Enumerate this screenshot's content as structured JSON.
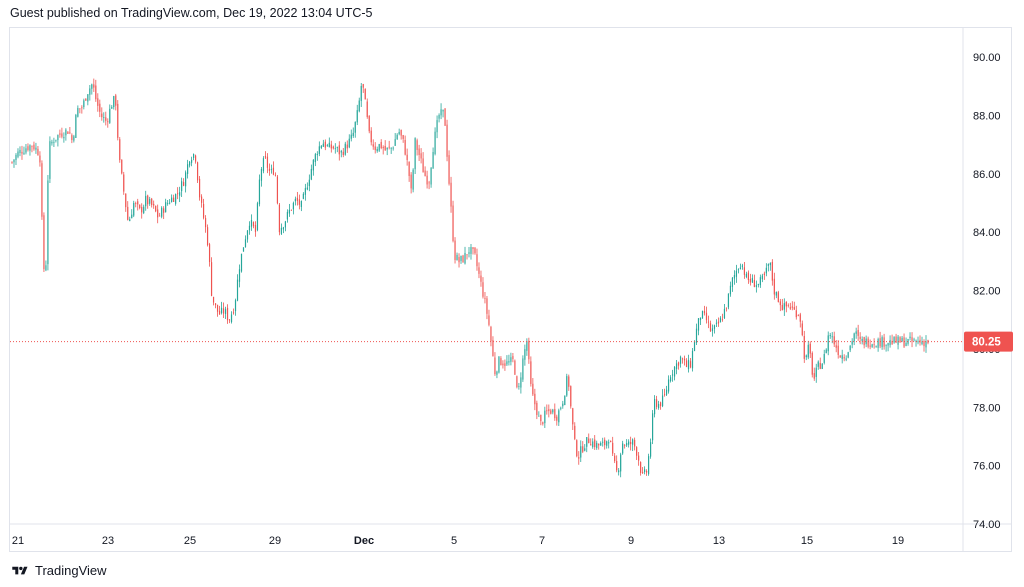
{
  "header": {
    "text": "Guest published on TradingView.com, Dec 19, 2022 13:04 UTC-5"
  },
  "footer": {
    "brand": "TradingView"
  },
  "colors": {
    "up": "#26a69a",
    "down": "#ef5350",
    "price_line": "#ef5350",
    "axis_border": "#e0e3eb"
  },
  "chart_data": {
    "type": "candlestick",
    "title": "",
    "ylim": [
      74,
      91
    ],
    "y_ticks": [
      "90.00",
      "88.00",
      "86.00",
      "84.00",
      "82.00",
      "80.00",
      "78.00",
      "76.00",
      "74.00"
    ],
    "x_tick_labels": [
      "21",
      "23",
      "25",
      "29",
      "Dec",
      "5",
      "7",
      "9",
      "13",
      "15",
      "19"
    ],
    "last_price": "80.25",
    "grid": false,
    "close_path": [
      [
        0.0,
        86.4
      ],
      [
        0.006,
        86.7
      ],
      [
        0.015,
        86.9
      ],
      [
        0.022,
        87.0
      ],
      [
        0.028,
        86.8
      ],
      [
        0.031,
        86.5
      ],
      [
        0.034,
        82.7
      ],
      [
        0.037,
        82.9
      ],
      [
        0.04,
        86.9
      ],
      [
        0.046,
        87.2
      ],
      [
        0.054,
        87.4
      ],
      [
        0.062,
        87.5
      ],
      [
        0.066,
        87.1
      ],
      [
        0.071,
        88.2
      ],
      [
        0.077,
        88.3
      ],
      [
        0.082,
        88.8
      ],
      [
        0.088,
        89.1
      ],
      [
        0.092,
        88.5
      ],
      [
        0.097,
        88.0
      ],
      [
        0.103,
        87.8
      ],
      [
        0.109,
        88.4
      ],
      [
        0.113,
        88.6
      ],
      [
        0.117,
        86.5
      ],
      [
        0.122,
        85.4
      ],
      [
        0.127,
        84.3
      ],
      [
        0.133,
        85.0
      ],
      [
        0.14,
        84.7
      ],
      [
        0.146,
        85.1
      ],
      [
        0.153,
        84.9
      ],
      [
        0.16,
        84.5
      ],
      [
        0.165,
        84.8
      ],
      [
        0.172,
        85.1
      ],
      [
        0.18,
        85.3
      ],
      [
        0.188,
        85.8
      ],
      [
        0.194,
        86.6
      ],
      [
        0.2,
        86.7
      ],
      [
        0.205,
        85.2
      ],
      [
        0.211,
        84.2
      ],
      [
        0.214,
        83.6
      ],
      [
        0.218,
        81.9
      ],
      [
        0.221,
        81.5
      ],
      [
        0.226,
        81.2
      ],
      [
        0.232,
        81.3
      ],
      [
        0.237,
        81.0
      ],
      [
        0.243,
        81.5
      ],
      [
        0.248,
        82.8
      ],
      [
        0.253,
        83.6
      ],
      [
        0.259,
        84.4
      ],
      [
        0.266,
        84.0
      ],
      [
        0.271,
        86.1
      ],
      [
        0.276,
        86.5
      ],
      [
        0.282,
        86.0
      ],
      [
        0.287,
        86.2
      ],
      [
        0.292,
        84.1
      ],
      [
        0.298,
        84.4
      ],
      [
        0.304,
        84.8
      ],
      [
        0.31,
        85.1
      ],
      [
        0.316,
        84.9
      ],
      [
        0.321,
        85.5
      ],
      [
        0.326,
        86.1
      ],
      [
        0.333,
        86.8
      ],
      [
        0.339,
        87.1
      ],
      [
        0.345,
        86.9
      ],
      [
        0.352,
        86.9
      ],
      [
        0.359,
        86.7
      ],
      [
        0.366,
        87.0
      ],
      [
        0.372,
        87.3
      ],
      [
        0.378,
        88.2
      ],
      [
        0.382,
        89.2
      ],
      [
        0.386,
        88.3
      ],
      [
        0.39,
        87.3
      ],
      [
        0.396,
        86.9
      ],
      [
        0.402,
        87.0
      ],
      [
        0.408,
        86.8
      ],
      [
        0.415,
        86.9
      ],
      [
        0.422,
        87.5
      ],
      [
        0.428,
        87.0
      ],
      [
        0.433,
        86.1
      ],
      [
        0.436,
        85.3
      ],
      [
        0.44,
        87.1
      ],
      [
        0.445,
        86.6
      ],
      [
        0.45,
        86.0
      ],
      [
        0.455,
        85.7
      ],
      [
        0.46,
        87.0
      ],
      [
        0.466,
        88.0
      ],
      [
        0.472,
        88.1
      ],
      [
        0.476,
        86.2
      ],
      [
        0.479,
        84.9
      ],
      [
        0.483,
        83.2
      ],
      [
        0.488,
        83.0
      ],
      [
        0.493,
        83.1
      ],
      [
        0.499,
        83.4
      ],
      [
        0.505,
        83.2
      ],
      [
        0.51,
        82.5
      ],
      [
        0.515,
        81.8
      ],
      [
        0.52,
        81.0
      ],
      [
        0.524,
        80.0
      ],
      [
        0.527,
        79.2
      ],
      [
        0.532,
        79.6
      ],
      [
        0.54,
        79.5
      ],
      [
        0.548,
        79.6
      ],
      [
        0.552,
        78.3
      ],
      [
        0.557,
        79.5
      ],
      [
        0.562,
        80.3
      ],
      [
        0.567,
        78.5
      ],
      [
        0.572,
        78.0
      ],
      [
        0.577,
        77.4
      ],
      [
        0.583,
        77.8
      ],
      [
        0.589,
        77.9
      ],
      [
        0.595,
        77.7
      ],
      [
        0.601,
        78.2
      ],
      [
        0.607,
        79.1
      ],
      [
        0.61,
        78.0
      ],
      [
        0.614,
        76.8
      ],
      [
        0.618,
        76.3
      ],
      [
        0.624,
        76.7
      ],
      [
        0.63,
        76.9
      ],
      [
        0.638,
        76.7
      ],
      [
        0.646,
        76.7
      ],
      [
        0.652,
        77.0
      ],
      [
        0.656,
        76.2
      ],
      [
        0.661,
        75.7
      ],
      [
        0.666,
        76.8
      ],
      [
        0.672,
        76.7
      ],
      [
        0.678,
        76.8
      ],
      [
        0.683,
        76.4
      ],
      [
        0.688,
        75.6
      ],
      [
        0.693,
        75.8
      ],
      [
        0.697,
        76.8
      ],
      [
        0.701,
        78.2
      ],
      [
        0.706,
        78.1
      ],
      [
        0.712,
        78.3
      ],
      [
        0.718,
        79.1
      ],
      [
        0.724,
        79.4
      ],
      [
        0.73,
        79.7
      ],
      [
        0.736,
        79.4
      ],
      [
        0.741,
        79.5
      ],
      [
        0.746,
        80.5
      ],
      [
        0.752,
        81.2
      ],
      [
        0.758,
        81.0
      ],
      [
        0.763,
        80.6
      ],
      [
        0.768,
        80.7
      ],
      [
        0.774,
        81.0
      ],
      [
        0.78,
        81.5
      ],
      [
        0.786,
        82.3
      ],
      [
        0.791,
        82.7
      ],
      [
        0.796,
        83.0
      ],
      [
        0.802,
        82.4
      ],
      [
        0.808,
        82.3
      ],
      [
        0.815,
        82.2
      ],
      [
        0.822,
        82.5
      ],
      [
        0.827,
        83.0
      ],
      [
        0.832,
        82.0
      ],
      [
        0.837,
        81.7
      ],
      [
        0.842,
        81.4
      ],
      [
        0.848,
        81.5
      ],
      [
        0.854,
        81.3
      ],
      [
        0.86,
        81.2
      ],
      [
        0.866,
        79.5
      ],
      [
        0.87,
        80.1
      ],
      [
        0.875,
        78.9
      ],
      [
        0.88,
        79.4
      ],
      [
        0.886,
        79.6
      ],
      [
        0.892,
        80.6
      ],
      [
        0.898,
        80.2
      ],
      [
        0.904,
        79.8
      ],
      [
        0.91,
        79.8
      ],
      [
        0.915,
        80.1
      ],
      [
        0.92,
        80.6
      ],
      [
        0.925,
        80.25
      ]
    ]
  }
}
